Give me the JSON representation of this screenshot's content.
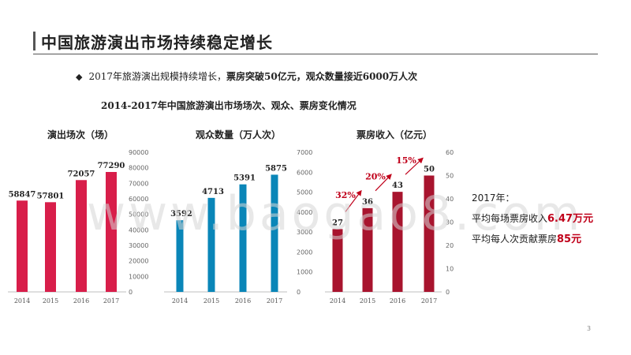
{
  "page": {
    "title": "中国旅游演出市场持续稳定增长",
    "bullet_symbol": "◆",
    "bullet_text_a": "2017年旅游演出规模持续增长，",
    "bullet_text_b": "票房突破50亿元，观众数量接近6000万人次",
    "subtitle": "2014-2017年中国旅游演出市场场次、观众、票房变化情况",
    "notes": {
      "year": "2017年：",
      "line1_prefix": "平均每场票房收入",
      "line1_value": "6.47万元",
      "line2_prefix": "平均每人次贡献票房",
      "line2_value": "85元"
    },
    "watermark": "www.baogao8.com",
    "page_number": "3"
  },
  "chart_data": [
    {
      "type": "bar",
      "title": "演出场次（场）",
      "categories": [
        "2014",
        "2015",
        "2016",
        "2017"
      ],
      "values": [
        58847,
        57801,
        72057,
        77290
      ],
      "ylim": [
        0,
        90000
      ],
      "y_ticks": [
        "0",
        "10000",
        "20000",
        "30000",
        "40000",
        "50000",
        "60000",
        "70000",
        "80000",
        "90000"
      ],
      "y_axis_side": "right",
      "color": "#d81e4a"
    },
    {
      "type": "bar",
      "title": "观众数量（万人次）",
      "categories": [
        "2014",
        "2015",
        "2016",
        "2017"
      ],
      "values": [
        3592,
        4713,
        5391,
        5875
      ],
      "ylim": [
        0,
        7000
      ],
      "y_ticks": [
        "0",
        "1000",
        "2000",
        "3000",
        "4000",
        "5000",
        "6000",
        "7000"
      ],
      "y_axis_side": "right",
      "color": "#0a86b8"
    },
    {
      "type": "bar",
      "title": "票房收入（亿元）",
      "categories": [
        "2014",
        "2015",
        "2016",
        "2017"
      ],
      "values": [
        27,
        36,
        43,
        50
      ],
      "ylim": [
        0,
        60
      ],
      "y_ticks": [
        "0",
        "10",
        "20",
        "30",
        "40",
        "50",
        "60"
      ],
      "y_axis_side": "right",
      "color": "#a8142e",
      "growth_labels": [
        "32%",
        "20%",
        "15%"
      ],
      "growth_color": "#c0001a"
    }
  ]
}
